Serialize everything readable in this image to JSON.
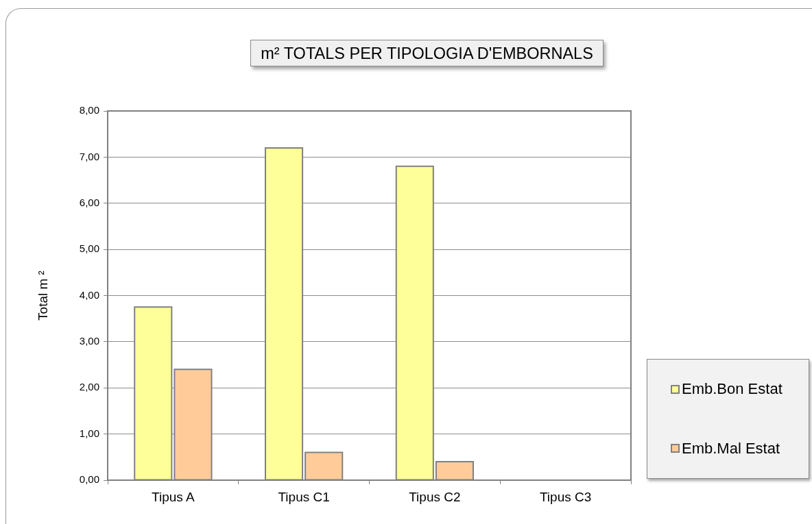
{
  "chart_data": {
    "type": "bar",
    "title": "m² TOTALS PER TIPOLOGIA D'EMBORNALS",
    "ylabel": "Total m ²",
    "categories": [
      "Tipus A",
      "Tipus C1",
      "Tipus C2",
      "Tipus C3"
    ],
    "series": [
      {
        "name": "Emb.Bon Estat",
        "color": "#ffff99",
        "values": [
          3.75,
          7.2,
          6.8,
          null
        ]
      },
      {
        "name": "Emb.Mal Estat",
        "color": "#ffcc99",
        "values": [
          2.4,
          0.6,
          0.4,
          null
        ]
      }
    ],
    "ylim": [
      0,
      8
    ],
    "yticks": [
      {
        "value": 0,
        "label": "0,00"
      },
      {
        "value": 1,
        "label": "1,00"
      },
      {
        "value": 2,
        "label": "2,00"
      },
      {
        "value": 3,
        "label": "3,00"
      },
      {
        "value": 4,
        "label": "4,00"
      },
      {
        "value": 5,
        "label": "5,00"
      },
      {
        "value": 6,
        "label": "6,00"
      },
      {
        "value": 7,
        "label": "7,00"
      },
      {
        "value": 8,
        "label": "8,00"
      }
    ],
    "grid": "y",
    "legend": "right"
  }
}
